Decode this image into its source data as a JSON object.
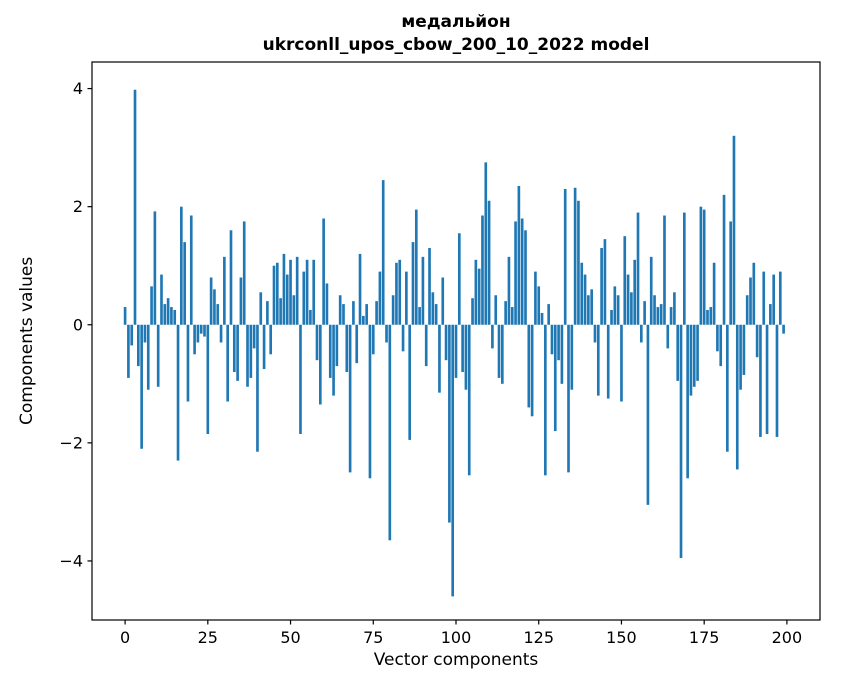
{
  "chart_data": {
    "type": "bar",
    "title_line1": "медальйон",
    "title_line2": "ukrconll_upos_cbow_200_10_2022 model",
    "xlabel": "Vector components",
    "ylabel": "Components values",
    "bar_color": "#1f77b4",
    "xlim": [
      -10,
      210
    ],
    "ylim": [
      -5.0,
      4.45
    ],
    "xticks": [
      0,
      25,
      50,
      75,
      100,
      125,
      150,
      175,
      200
    ],
    "xtick_labels": [
      "0",
      "25",
      "50",
      "75",
      "100",
      "125",
      "150",
      "175",
      "200"
    ],
    "yticks": [
      -4,
      -2,
      0,
      2,
      4
    ],
    "ytick_labels": [
      "−4",
      "−2",
      "0",
      "2",
      "4"
    ],
    "x_start": 0,
    "values": [
      0.3,
      -0.9,
      -0.35,
      3.98,
      -0.7,
      -2.1,
      -0.3,
      -1.1,
      0.65,
      1.92,
      -1.05,
      0.85,
      0.35,
      0.45,
      0.3,
      0.25,
      -2.3,
      2.0,
      1.4,
      -1.3,
      1.85,
      -0.5,
      -0.3,
      -0.15,
      -0.2,
      -1.85,
      0.8,
      0.6,
      0.35,
      -0.3,
      1.15,
      -1.3,
      1.6,
      -0.8,
      -0.95,
      0.8,
      1.75,
      -1.05,
      -0.9,
      -0.4,
      -2.15,
      0.55,
      -0.75,
      0.4,
      -0.5,
      1.0,
      1.05,
      0.45,
      1.2,
      0.85,
      1.1,
      0.5,
      1.15,
      -1.85,
      0.9,
      1.1,
      0.25,
      1.1,
      -0.6,
      -1.35,
      1.8,
      0.7,
      -0.9,
      -1.2,
      -0.7,
      0.5,
      0.35,
      -0.8,
      -2.5,
      0.4,
      -0.65,
      1.2,
      0.15,
      0.35,
      -2.6,
      -0.5,
      0.4,
      0.9,
      2.45,
      -0.3,
      -3.65,
      0.5,
      1.05,
      1.1,
      -0.45,
      0.9,
      -1.95,
      1.4,
      1.95,
      0.3,
      1.15,
      -0.7,
      1.3,
      0.55,
      0.35,
      -1.15,
      0.8,
      -0.6,
      -3.35,
      -4.6,
      -0.9,
      1.55,
      -0.8,
      -1.1,
      -2.55,
      0.45,
      1.1,
      0.95,
      1.85,
      2.75,
      2.1,
      -0.4,
      0.5,
      -0.9,
      -1.0,
      0.4,
      1.15,
      0.3,
      1.75,
      2.35,
      1.8,
      1.6,
      -1.4,
      -1.55,
      0.9,
      0.65,
      0.2,
      -2.55,
      0.35,
      -0.5,
      -1.8,
      -0.6,
      -1.0,
      2.3,
      -2.5,
      -1.1,
      2.32,
      2.1,
      1.05,
      0.85,
      0.5,
      0.6,
      -0.3,
      -1.2,
      1.3,
      1.45,
      -1.25,
      0.25,
      0.65,
      0.5,
      -1.3,
      1.5,
      0.85,
      0.55,
      1.1,
      1.9,
      -0.3,
      0.4,
      -3.05,
      1.15,
      0.5,
      0.3,
      0.35,
      1.85,
      -0.4,
      0.3,
      0.55,
      -0.95,
      -3.95,
      1.9,
      -2.6,
      -1.2,
      -1.05,
      -0.95,
      2.0,
      1.95,
      0.25,
      0.3,
      1.05,
      -0.45,
      -0.7,
      2.2,
      -2.15,
      1.75,
      3.2,
      -2.45,
      -1.1,
      -0.85,
      0.5,
      0.8,
      1.05,
      -0.55,
      -1.9,
      0.9,
      -1.85,
      0.35,
      0.85,
      -1.9,
      0.9,
      -0.15
    ]
  }
}
